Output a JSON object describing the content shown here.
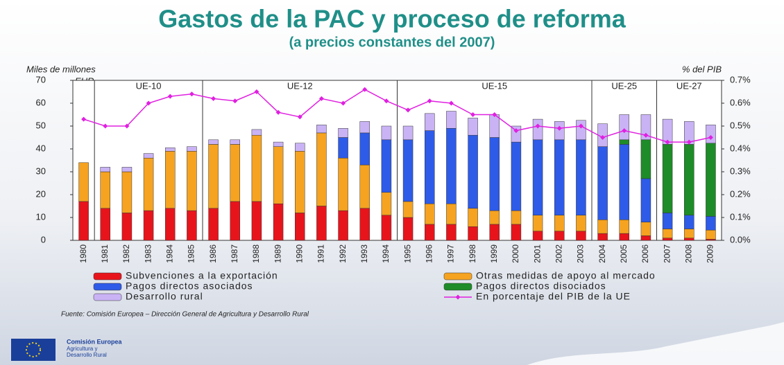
{
  "chart_data": {
    "type": "bar",
    "stacked": true,
    "title": "Gastos de la PAC y proceso de reforma",
    "subtitle": "(a precios constantes del 2007)",
    "ylabel": "Miles de millones",
    "ylabel_unit": "EUR",
    "y2label": "% del PIB",
    "categories": [
      "1980",
      "1981",
      "1982",
      "1983",
      "1984",
      "1985",
      "1986",
      "1987",
      "1988",
      "1989",
      "1990",
      "1991",
      "1992",
      "1993",
      "1994",
      "1995",
      "1996",
      "1997",
      "1998",
      "1999",
      "2000",
      "2001",
      "2002",
      "2003",
      "2004",
      "2005",
      "2006",
      "2007",
      "2008",
      "2009"
    ],
    "periods": [
      {
        "label": "UE-10",
        "start": "1981",
        "end": "1985"
      },
      {
        "label": "UE-12",
        "start": "1986",
        "end": "1994"
      },
      {
        "label": "UE-15",
        "start": "1995",
        "end": "2003"
      },
      {
        "label": "UE-25",
        "start": "2004",
        "end": "2006"
      },
      {
        "label": "UE-27",
        "start": "2007",
        "end": "2009"
      }
    ],
    "series": [
      {
        "name": "Subvenciones a la exportación",
        "color": "#e8141c",
        "values": [
          17,
          14,
          12,
          13,
          14,
          13,
          14,
          17,
          17,
          16,
          12,
          15,
          13,
          14,
          11,
          10,
          7,
          7,
          6,
          7,
          7,
          4,
          4,
          4,
          3,
          3,
          2,
          1,
          1,
          0.5
        ]
      },
      {
        "name": "Otras medidas de apoyo al mercado",
        "color": "#f5a321",
        "values": [
          17,
          16,
          18,
          23,
          25,
          26,
          28,
          25,
          29,
          25,
          27,
          32,
          23,
          19,
          10,
          7,
          9,
          9,
          8,
          6,
          6,
          7,
          7,
          7,
          6,
          6,
          6,
          4,
          4,
          4
        ]
      },
      {
        "name": "Pagos directos asociados",
        "color": "#2e5be8",
        "values": [
          0,
          0,
          0,
          0,
          0,
          0,
          0,
          0,
          0,
          0,
          0,
          0,
          9,
          14,
          23,
          27,
          32,
          33,
          32,
          32,
          30,
          33,
          33,
          33,
          32,
          33,
          19,
          7,
          6,
          6
        ]
      },
      {
        "name": "Pagos directos disociados",
        "color": "#1e8c28",
        "values": [
          0,
          0,
          0,
          0,
          0,
          0,
          0,
          0,
          0,
          0,
          0,
          0,
          0,
          0,
          0,
          0,
          0,
          0,
          0,
          0,
          0,
          0,
          0,
          0,
          0,
          2,
          17,
          30,
          31,
          32
        ]
      },
      {
        "name": "Desarrollo rural",
        "color": "#c9b3f5",
        "values": [
          0,
          2,
          2,
          2,
          1.5,
          2,
          2,
          2,
          2.5,
          2,
          3.5,
          3.5,
          4,
          5,
          6,
          6,
          7.5,
          7.5,
          7.5,
          10,
          7,
          9,
          8,
          8.5,
          10,
          11,
          11,
          11,
          10,
          8
        ]
      },
      {
        "name": "En porcentaje del PIB de la UE",
        "color": "#e020e0",
        "type": "line",
        "axis": "y2",
        "values": [
          0.53,
          0.5,
          0.5,
          0.6,
          0.63,
          0.64,
          0.62,
          0.61,
          0.65,
          0.56,
          0.54,
          0.62,
          0.6,
          0.66,
          0.61,
          0.57,
          0.61,
          0.6,
          0.55,
          0.55,
          0.48,
          0.5,
          0.49,
          0.5,
          0.45,
          0.48,
          0.46,
          0.43,
          0.43,
          0.45
        ]
      }
    ],
    "ylim": [
      0,
      70
    ],
    "yticks": [
      0,
      10,
      20,
      30,
      40,
      50,
      60,
      70
    ],
    "y2lim": [
      0,
      0.7
    ],
    "y2ticks": [
      {
        "value": 0,
        "label": "0.0%"
      },
      {
        "value": 0.1,
        "label": "0.1%"
      },
      {
        "value": 0.2,
        "label": "0.2%"
      },
      {
        "value": 0.3,
        "label": "0.3%"
      },
      {
        "value": 0.4,
        "label": "0.4%"
      },
      {
        "value": 0.5,
        "label": "0.5%"
      },
      {
        "value": 0.6,
        "label": "0.6%"
      },
      {
        "value": 0.7,
        "label": "0.7%"
      }
    ],
    "source": "Fuente: Comisión Europea – Dirección General de Agricultura y Desarrollo Rural",
    "logo": [
      "Comisión Europea",
      "Agricultura y",
      "Desarrollo Rural"
    ]
  }
}
